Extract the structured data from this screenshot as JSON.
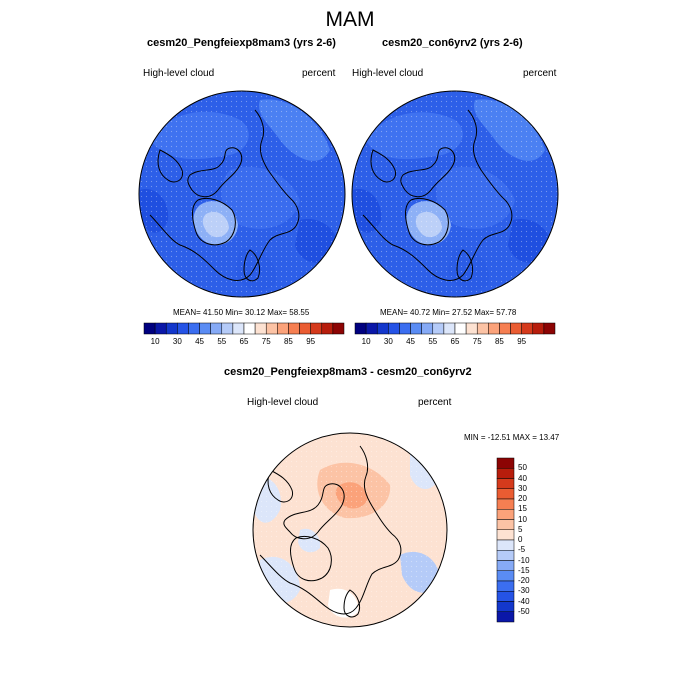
{
  "page_title": "MAM",
  "palette": {
    "main": [
      "#00007f",
      "#0a17a8",
      "#1337cc",
      "#2553e6",
      "#3b6ef0",
      "#5a8cf4",
      "#86aaf6",
      "#b5cbf8",
      "#dce6fa",
      "#ffffff",
      "#fde2d2",
      "#fcc3a5",
      "#fba27a",
      "#f67f52",
      "#ea5c32",
      "#d53a1c",
      "#b71d0c",
      "#8c0404"
    ],
    "diff": [
      "#8c0404",
      "#b71d0c",
      "#d53a1c",
      "#ea5c32",
      "#f67f52",
      "#fba27a",
      "#fcc3a5",
      "#fde2d2",
      "#dce6fa",
      "#b5cbf8",
      "#86aaf6",
      "#5a8cf4",
      "#3b6ef0",
      "#2553e6",
      "#1337cc",
      "#0a17a8"
    ]
  },
  "chart_data": [
    {
      "type": "heatmap",
      "projection": "north-polar-stereographic",
      "title": "cesm20_Pengfeiexp8mam3 (yrs 2-6)",
      "left_label": "High-level cloud",
      "right_label": "percent",
      "stats": "MEAN=  41.50  Min=  30.12  Max=  58.55",
      "mean": 41.5,
      "min": 30.12,
      "max": 58.55,
      "colorbar": {
        "orientation": "horizontal",
        "ticks": [
          "10",
          "30",
          "45",
          "55",
          "65",
          "75",
          "85",
          "95"
        ],
        "levels": [
          5,
          10,
          20,
          30,
          35,
          40,
          45,
          50,
          55,
          60,
          65,
          70,
          75,
          80,
          85,
          90,
          95
        ]
      }
    },
    {
      "type": "heatmap",
      "projection": "north-polar-stereographic",
      "title": "cesm20_con6yrv2 (yrs 2-6)",
      "left_label": "High-level cloud",
      "right_label": "percent",
      "stats": "MEAN=  40.72  Min=  27.52  Max=  57.78",
      "mean": 40.72,
      "min": 27.52,
      "max": 57.78,
      "colorbar": {
        "orientation": "horizontal",
        "ticks": [
          "10",
          "30",
          "45",
          "55",
          "65",
          "75",
          "85",
          "95"
        ],
        "levels": [
          5,
          10,
          20,
          30,
          35,
          40,
          45,
          50,
          55,
          60,
          65,
          70,
          75,
          80,
          85,
          90,
          95
        ]
      }
    },
    {
      "type": "heatmap",
      "projection": "north-polar-stereographic",
      "title": "cesm20_Pengfeiexp8mam3 - cesm20_con6yrv2",
      "left_label": "High-level cloud",
      "right_label": "percent",
      "stats": "MIN = -12.51 MAX =  13.47",
      "min": -12.51,
      "max": 13.47,
      "colorbar": {
        "orientation": "vertical",
        "ticks": [
          "50",
          "40",
          "30",
          "20",
          "15",
          "10",
          "5",
          "0",
          "-5",
          "-10",
          "-15",
          "-20",
          "-30",
          "-40",
          "-50"
        ],
        "levels": [
          50,
          40,
          30,
          20,
          15,
          10,
          5,
          0,
          -5,
          -10,
          -15,
          -20,
          -30,
          -40,
          -50
        ]
      }
    }
  ]
}
